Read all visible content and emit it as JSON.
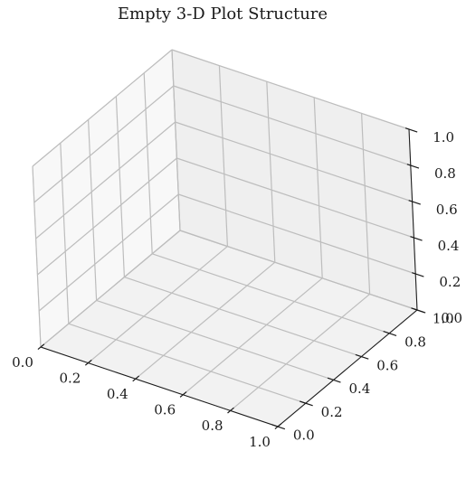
{
  "chart_data": {
    "type": "scatter",
    "projection": "3d",
    "title": "Empty 3-D Plot Structure",
    "xlabel": "",
    "ylabel": "",
    "zlabel": "",
    "xlim": [
      0,
      1
    ],
    "ylim": [
      0,
      1
    ],
    "zlim": [
      0,
      1
    ],
    "x_ticks": [
      "0.0",
      "0.2",
      "0.4",
      "0.6",
      "0.8",
      "1.0"
    ],
    "y_ticks": [
      "0.0",
      "0.2",
      "0.4",
      "0.6",
      "0.8",
      "1.0"
    ],
    "z_ticks": [
      "0.0",
      "0.2",
      "0.4",
      "0.6",
      "0.8",
      "1.0"
    ],
    "series": [],
    "grid": true,
    "pane_colors": {
      "floor": "#f2f2f2",
      "left_wall": "#f8f8f8",
      "back_wall": "#efefef"
    },
    "grid_color": "#bdbdbd",
    "axis_color": "#1a1a1a"
  }
}
